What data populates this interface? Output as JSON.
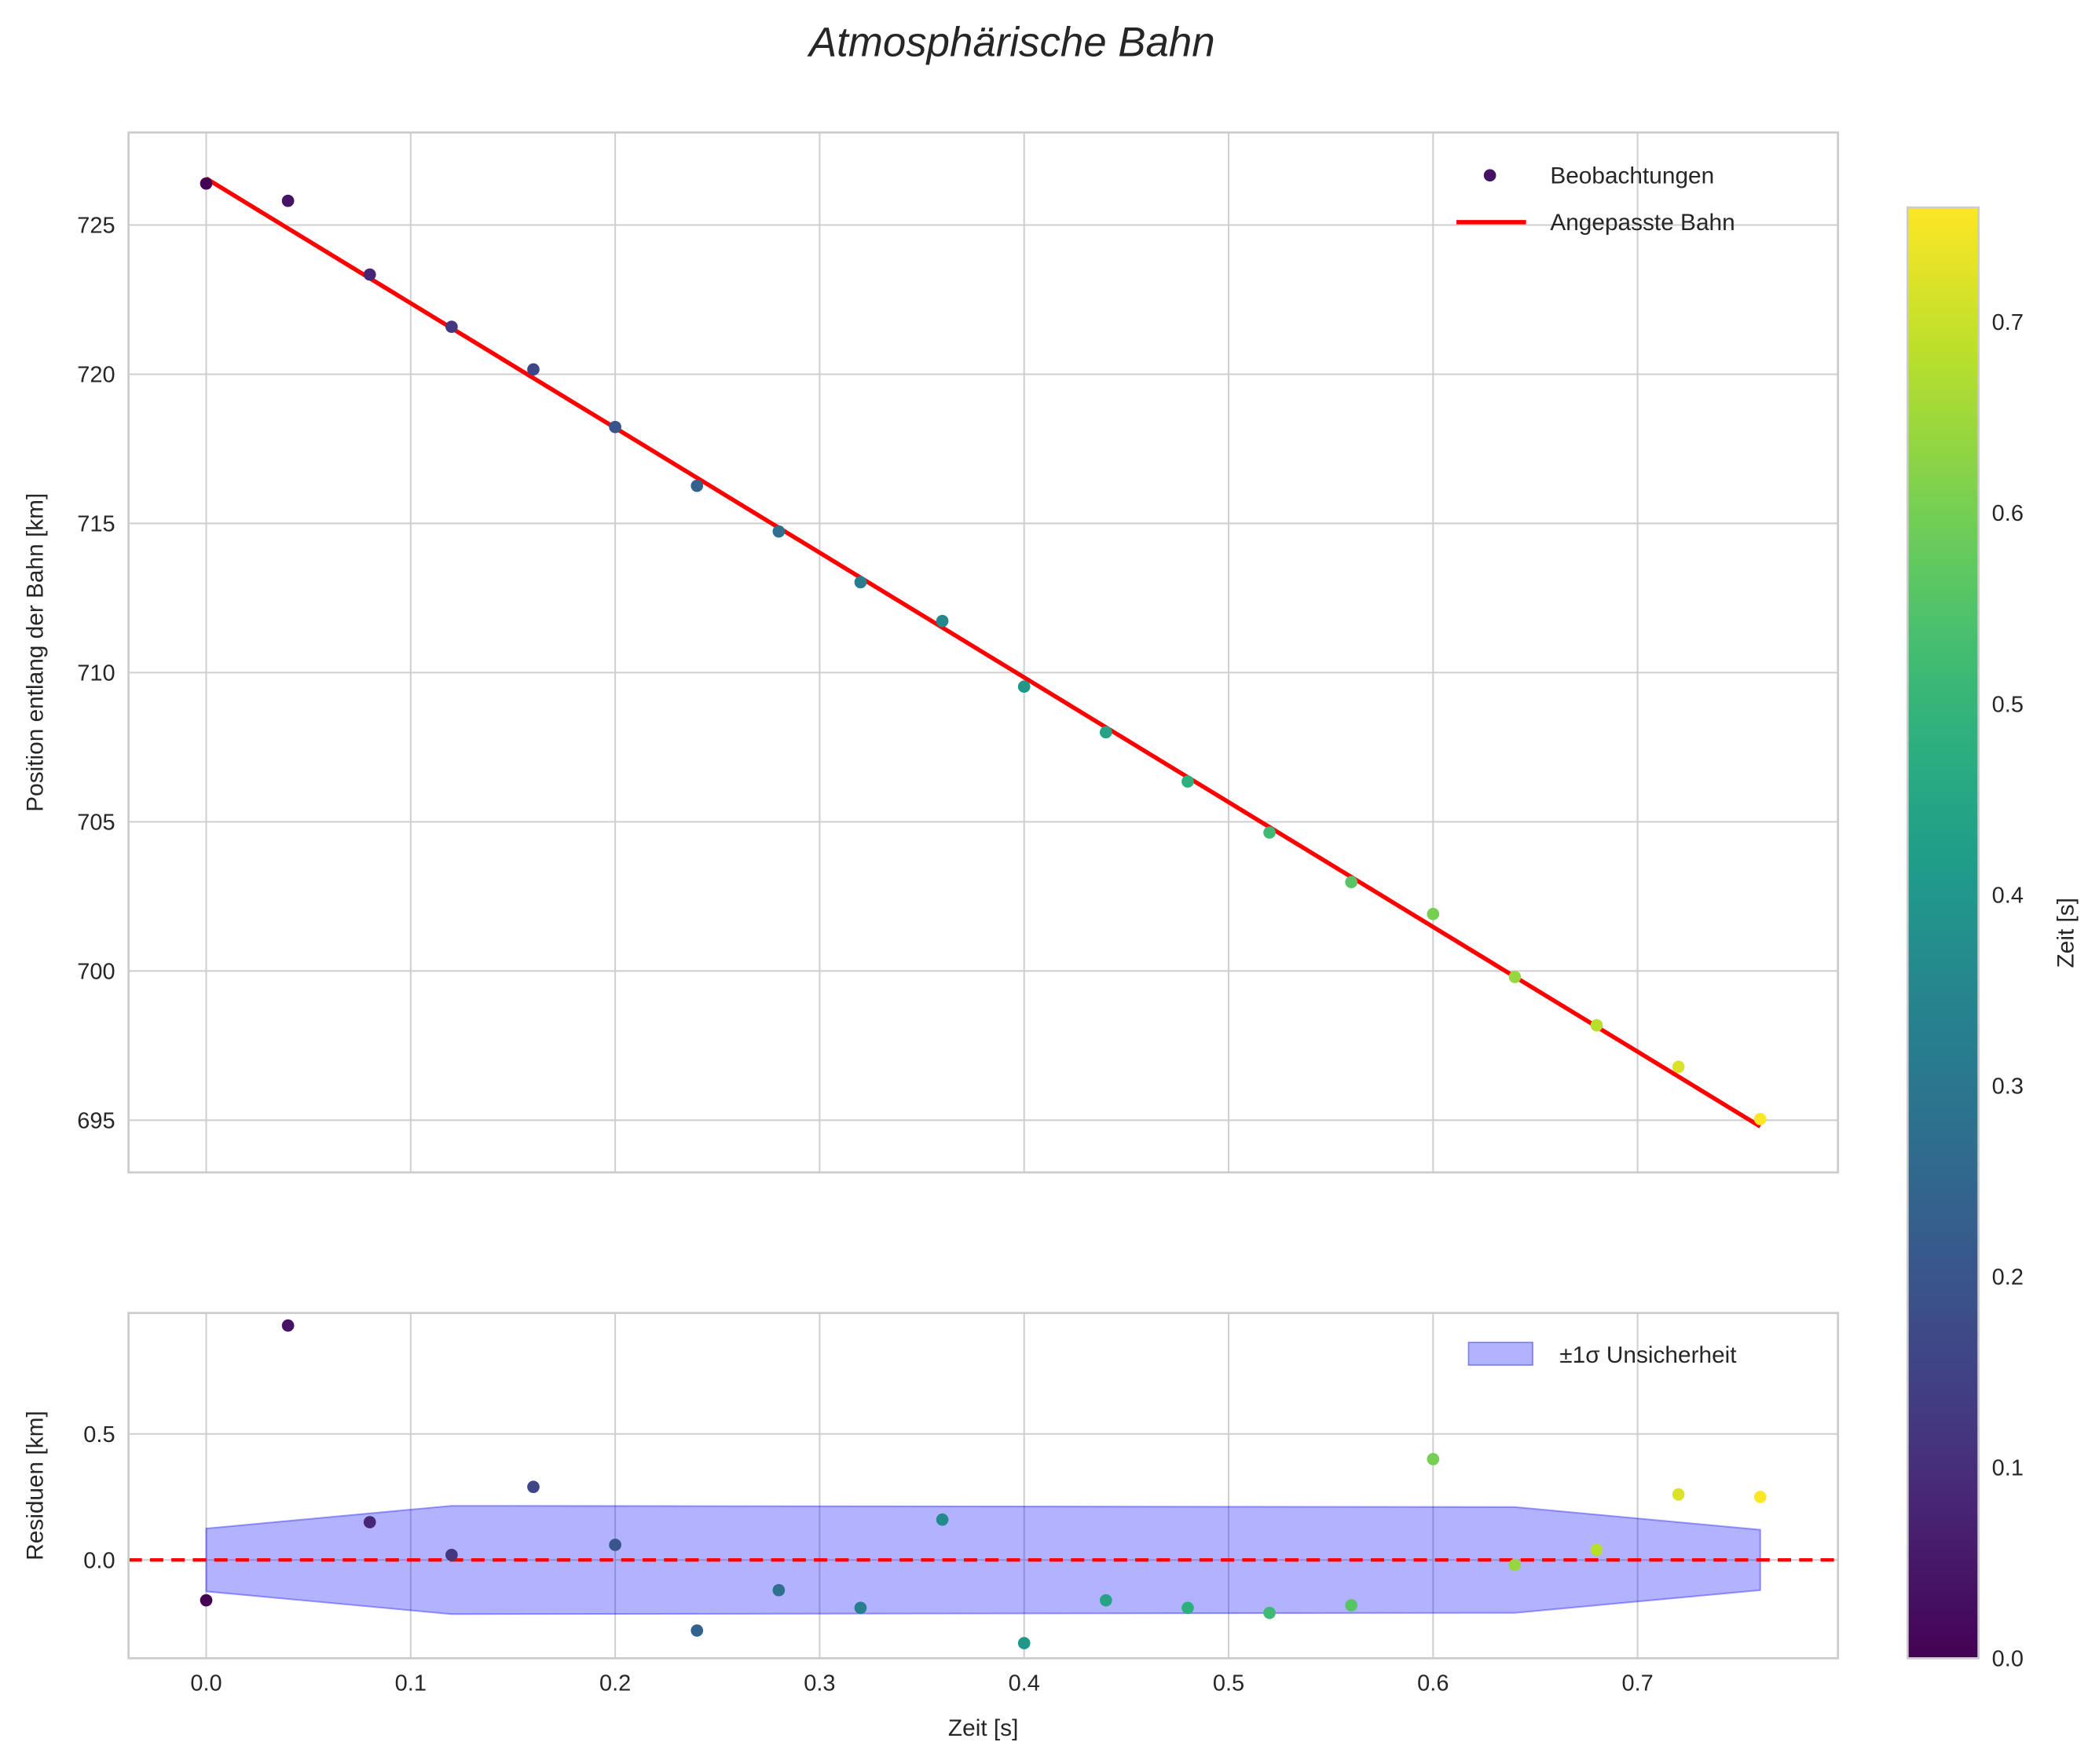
{
  "chart_data": [
    {
      "type": "scatter",
      "title": "Atmosphärische Bahn",
      "xlabel": "",
      "ylabel": "Position entlang der Bahn [km]",
      "xlim": [
        -0.038,
        0.798
      ],
      "ylim": [
        693.25,
        728.1
      ],
      "grid": true,
      "xticks": [
        0.0,
        0.1,
        0.2,
        0.3,
        0.4,
        0.5,
        0.6,
        0.7
      ],
      "yticks": [
        695,
        700,
        705,
        710,
        715,
        720,
        725
      ],
      "legend_placement": "top-right",
      "series": [
        {
          "name": "Beobachtungen",
          "type": "scatter",
          "x": [
            0.0,
            0.04,
            0.08,
            0.12,
            0.16,
            0.2,
            0.24,
            0.28,
            0.32,
            0.36,
            0.4,
            0.44,
            0.48,
            0.52,
            0.56,
            0.6,
            0.64,
            0.68,
            0.72,
            0.76
          ],
          "y": [
            726.39,
            725.81,
            723.34,
            721.59,
            720.16,
            718.23,
            716.26,
            714.73,
            713.03,
            711.73,
            709.53,
            708.0,
            706.35,
            704.64,
            702.98,
            701.91,
            699.8,
            698.18,
            696.79,
            695.04
          ]
        },
        {
          "name": "Angepasste Bahn",
          "type": "line",
          "color": "#ff0000",
          "x": [
            0.0,
            0.76
          ],
          "y": [
            726.56,
            694.79
          ]
        }
      ]
    },
    {
      "type": "scatter",
      "xlabel": "Zeit [s]",
      "ylabel": "Residuen [km]",
      "xlim": [
        -0.038,
        0.798
      ],
      "ylim": [
        -0.39,
        0.98
      ],
      "grid": true,
      "xticks": [
        0.0,
        0.1,
        0.2,
        0.3,
        0.4,
        0.5,
        0.6,
        0.7
      ],
      "xtick_labels": [
        "0.0",
        "0.1",
        "0.2",
        "0.3",
        "0.4",
        "0.5",
        "0.6",
        "0.7"
      ],
      "yticks": [
        0.0,
        0.5
      ],
      "ytick_labels": [
        "0.0",
        "0.5"
      ],
      "legend_placement": "top-right",
      "series": [
        {
          "name": "Residuen",
          "type": "scatter",
          "x": [
            0.0,
            0.04,
            0.08,
            0.12,
            0.16,
            0.2,
            0.24,
            0.28,
            0.32,
            0.36,
            0.4,
            0.44,
            0.48,
            0.52,
            0.56,
            0.6,
            0.64,
            0.68,
            0.72,
            0.76
          ],
          "y": [
            -0.16,
            0.93,
            0.15,
            0.02,
            0.29,
            0.06,
            -0.28,
            -0.12,
            -0.19,
            0.16,
            -0.33,
            -0.16,
            -0.19,
            -0.21,
            -0.18,
            0.4,
            -0.02,
            0.04,
            0.26,
            0.25
          ]
        },
        {
          "name": "±1σ Unsicherheit",
          "type": "area",
          "color": "#0000ff",
          "x": [
            0.0,
            0.12,
            0.64,
            0.76
          ],
          "upper": [
            0.125,
            0.215,
            0.21,
            0.12
          ],
          "lower": [
            -0.125,
            -0.215,
            -0.21,
            -0.12
          ]
        },
        {
          "name": "zero",
          "type": "hline",
          "y": 0,
          "color": "#ff0000",
          "style": "dashed"
        }
      ]
    }
  ],
  "colorbar": {
    "label": "Zeit [s]",
    "range": [
      0.0,
      0.76
    ],
    "ticks": [
      0.0,
      0.1,
      0.2,
      0.3,
      0.4,
      0.5,
      0.6,
      0.7
    ],
    "tick_labels": [
      "0.0",
      "0.1",
      "0.2",
      "0.3",
      "0.4",
      "0.5",
      "0.6",
      "0.7"
    ],
    "colormap": "viridis"
  }
}
